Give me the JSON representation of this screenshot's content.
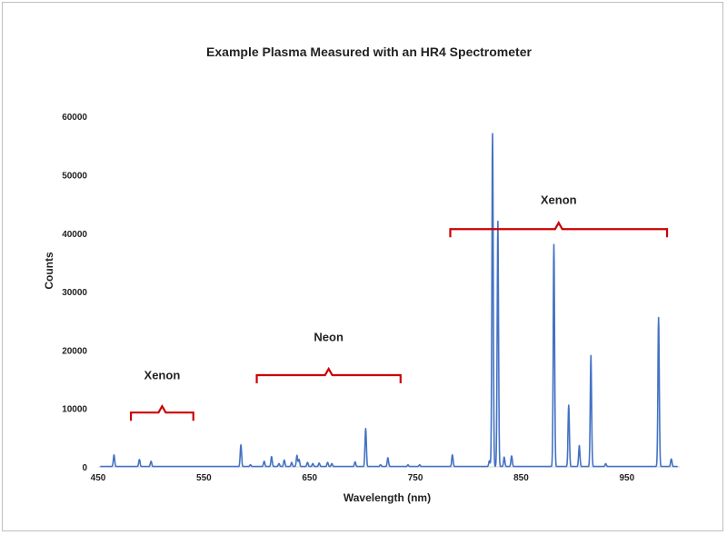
{
  "chart_data": {
    "type": "line",
    "title": "Example Plasma Measured with an HR4 Spectrometer",
    "xlabel": "Wavelength (nm)",
    "ylabel": "Counts",
    "xlim": [
      450,
      1000
    ],
    "ylim": [
      0,
      65000
    ],
    "xticks": [
      450,
      550,
      650,
      750,
      850,
      950
    ],
    "yticks": [
      0,
      10000,
      20000,
      30000,
      40000,
      50000,
      60000
    ],
    "grid": false,
    "line_color": "#4472c4",
    "annotation_color": "#cc0000",
    "series": [
      {
        "peaks": [
          [
            465,
            2000
          ],
          [
            489,
            1200
          ],
          [
            500,
            900
          ],
          [
            585,
            3700
          ],
          [
            594,
            300
          ],
          [
            607,
            900
          ],
          [
            614,
            1700
          ],
          [
            621,
            500
          ],
          [
            626,
            1100
          ],
          [
            633,
            700
          ],
          [
            638,
            1900
          ],
          [
            640,
            1200
          ],
          [
            648,
            700
          ],
          [
            653,
            500
          ],
          [
            659,
            600
          ],
          [
            667,
            700
          ],
          [
            671,
            500
          ],
          [
            693,
            800
          ],
          [
            703,
            6500
          ],
          [
            717,
            300
          ],
          [
            724,
            1500
          ],
          [
            743,
            300
          ],
          [
            754,
            300
          ],
          [
            785,
            2000
          ],
          [
            820,
            1000
          ],
          [
            823,
            57000
          ],
          [
            828,
            42000
          ],
          [
            834,
            1600
          ],
          [
            841,
            1800
          ],
          [
            881,
            38000
          ],
          [
            895,
            10500
          ],
          [
            905,
            3600
          ],
          [
            916,
            19000
          ],
          [
            930,
            500
          ],
          [
            980,
            25500
          ],
          [
            992,
            1300
          ]
        ]
      }
    ],
    "annotations": [
      {
        "label": "Xenon",
        "range": [
          481,
          540
        ],
        "y": 9300,
        "label_y": 15000
      },
      {
        "label": "Neon",
        "range": [
          600,
          736
        ],
        "y": 15700,
        "label_y": 21500
      },
      {
        "label": "Xenon",
        "range": [
          783,
          988
        ],
        "y": 40700,
        "label_y": 45000
      }
    ]
  }
}
